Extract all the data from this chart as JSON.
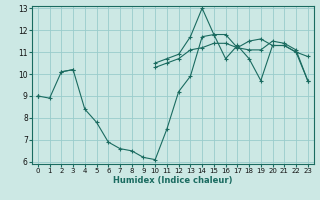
{
  "title": "",
  "xlabel": "Humidex (Indice chaleur)",
  "background_color": "#cce8e4",
  "grid_color": "#99cccc",
  "line_color": "#1a6b60",
  "x_hours": [
    0,
    1,
    2,
    3,
    4,
    5,
    6,
    7,
    8,
    9,
    10,
    11,
    12,
    13,
    14,
    15,
    16,
    17,
    18,
    19,
    20,
    21,
    22,
    23
  ],
  "line_max": [
    9.0,
    null,
    null,
    null,
    null,
    null,
    null,
    null,
    null,
    null,
    10.5,
    10.7,
    10.9,
    11.7,
    13.0,
    11.8,
    11.8,
    11.2,
    11.5,
    11.6,
    11.3,
    11.3,
    11.0,
    9.7
  ],
  "line_avg": [
    9.0,
    null,
    10.1,
    10.2,
    null,
    null,
    null,
    null,
    null,
    null,
    10.3,
    10.5,
    10.7,
    11.1,
    11.2,
    11.4,
    11.4,
    11.2,
    11.1,
    11.1,
    11.5,
    11.4,
    11.1,
    9.7
  ],
  "line_min": [
    9.0,
    8.9,
    10.1,
    10.2,
    8.4,
    7.8,
    6.9,
    6.6,
    6.5,
    6.2,
    6.1,
    7.5,
    9.2,
    9.9,
    11.7,
    11.8,
    10.7,
    11.3,
    10.7,
    9.7,
    11.3,
    11.3,
    11.0,
    10.8
  ],
  "ylim": [
    6,
    13
  ],
  "xlim": [
    -0.5,
    23.5
  ],
  "yticks": [
    6,
    7,
    8,
    9,
    10,
    11,
    12,
    13
  ],
  "xticks": [
    0,
    1,
    2,
    3,
    4,
    5,
    6,
    7,
    8,
    9,
    10,
    11,
    12,
    13,
    14,
    15,
    16,
    17,
    18,
    19,
    20,
    21,
    22,
    23
  ],
  "xlabel_fontsize": 6.0,
  "tick_fontsize": 5.0
}
